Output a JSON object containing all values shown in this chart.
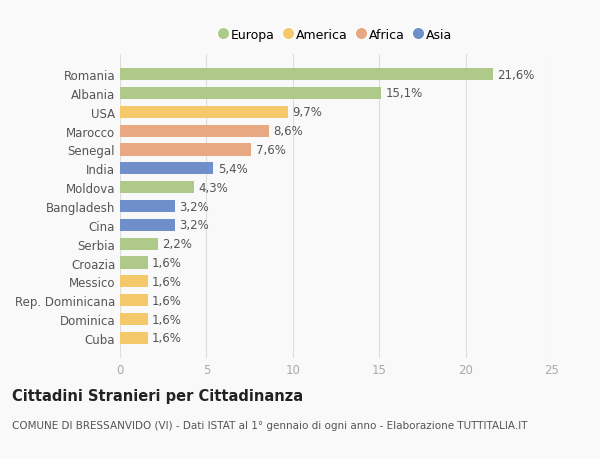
{
  "categories": [
    "Romania",
    "Albania",
    "USA",
    "Marocco",
    "Senegal",
    "India",
    "Moldova",
    "Bangladesh",
    "Cina",
    "Serbia",
    "Croazia",
    "Messico",
    "Rep. Dominicana",
    "Dominica",
    "Cuba"
  ],
  "values": [
    21.6,
    15.1,
    9.7,
    8.6,
    7.6,
    5.4,
    4.3,
    3.2,
    3.2,
    2.2,
    1.6,
    1.6,
    1.6,
    1.6,
    1.6
  ],
  "labels": [
    "21,6%",
    "15,1%",
    "9,7%",
    "8,6%",
    "7,6%",
    "5,4%",
    "4,3%",
    "3,2%",
    "3,2%",
    "2,2%",
    "1,6%",
    "1,6%",
    "1,6%",
    "1,6%",
    "1,6%"
  ],
  "continent": [
    "Europa",
    "Europa",
    "America",
    "Africa",
    "Africa",
    "Asia",
    "Europa",
    "Asia",
    "Asia",
    "Europa",
    "Europa",
    "America",
    "America",
    "America",
    "America"
  ],
  "colors": {
    "Europa": "#aec98a",
    "America": "#f5c96a",
    "Africa": "#e8a882",
    "Asia": "#6e8fc9"
  },
  "legend_order": [
    "Europa",
    "America",
    "Africa",
    "Asia"
  ],
  "xlim": [
    0,
    25
  ],
  "xticks": [
    0,
    5,
    10,
    15,
    20,
    25
  ],
  "title": "Cittadini Stranieri per Cittadinanza",
  "subtitle": "COMUNE DI BRESSANVIDO (VI) - Dati ISTAT al 1° gennaio di ogni anno - Elaborazione TUTTITALIA.IT",
  "bg_color": "#f9f9f9",
  "bar_height": 0.65,
  "label_fontsize": 8.5,
  "title_fontsize": 10.5,
  "subtitle_fontsize": 7.5
}
